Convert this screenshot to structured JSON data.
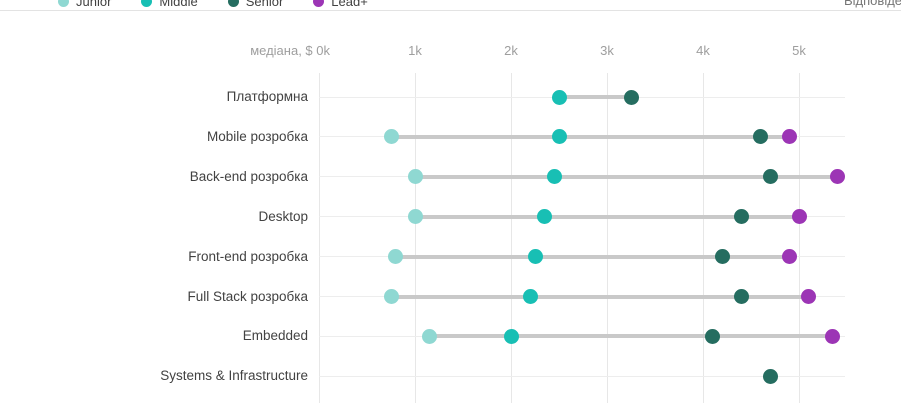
{
  "header": {
    "top_right_label": "Відповідей"
  },
  "chart_data": {
    "type": "scatter",
    "subtype": "dumbbell-dot-plot",
    "title": "",
    "unit": "$k",
    "legend_position": "top",
    "grid": true,
    "x_axis": {
      "prefix": "медіана, $",
      "ticks": [
        "0k",
        "1k",
        "2k",
        "3k",
        "4k",
        "5k"
      ],
      "range_k": [
        0,
        5.6
      ]
    },
    "series": [
      "Junior",
      "Middle",
      "Senior",
      "Lead+"
    ],
    "series_colors": {
      "Junior": "#8FD8D2",
      "Middle": "#18BFB4",
      "Senior": "#256D60",
      "Lead+": "#9C35B5"
    },
    "connector_color": "#C9C9C9",
    "gridline_color": "#E9E9E9",
    "rows": [
      {
        "category": "Платформна",
        "values": {
          "Middle": 2.5,
          "Senior": 3.25
        }
      },
      {
        "category": "Mobile розробка",
        "values": {
          "Junior": 0.75,
          "Middle": 2.5,
          "Senior": 4.6,
          "Lead+": 4.9
        }
      },
      {
        "category": "Back-end розробка",
        "values": {
          "Junior": 1.0,
          "Middle": 2.45,
          "Senior": 4.7,
          "Lead+": 5.4
        }
      },
      {
        "category": "Desktop",
        "values": {
          "Junior": 1.0,
          "Middle": 2.35,
          "Senior": 4.4,
          "Lead+": 5.0
        }
      },
      {
        "category": "Front-end розробка",
        "values": {
          "Junior": 0.8,
          "Middle": 2.25,
          "Senior": 4.2,
          "Lead+": 4.9
        }
      },
      {
        "category": "Full Stack розробка",
        "values": {
          "Junior": 0.75,
          "Middle": 2.2,
          "Senior": 4.4,
          "Lead+": 5.1
        }
      },
      {
        "category": "Embedded",
        "values": {
          "Junior": 1.15,
          "Middle": 2.0,
          "Senior": 4.1,
          "Lead+": 5.35
        }
      },
      {
        "category": "Systems & Infrastructure",
        "values": {
          "Senior": 4.7
        }
      }
    ]
  }
}
